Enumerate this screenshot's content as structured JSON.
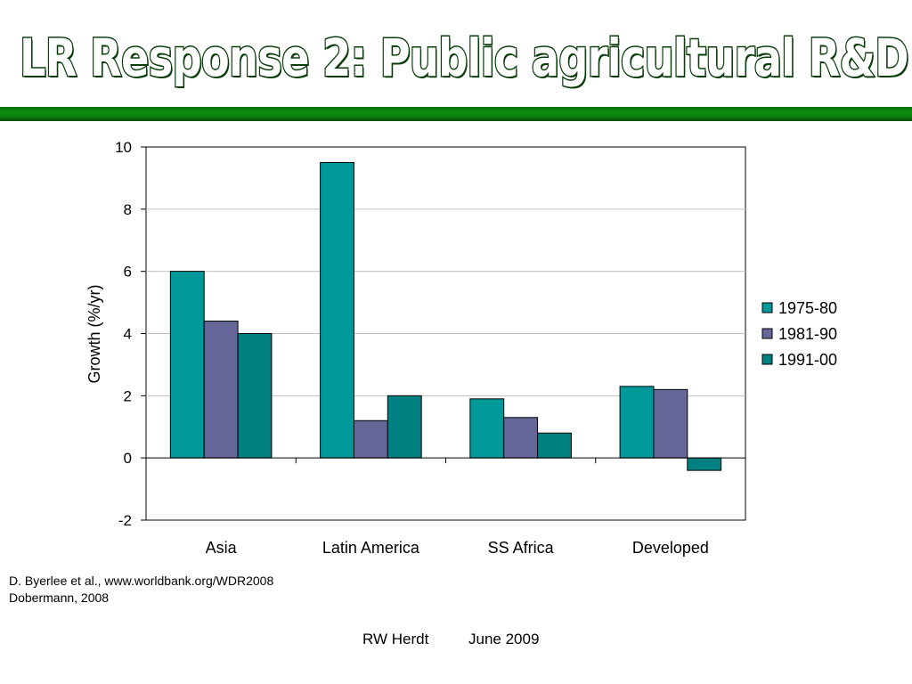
{
  "slide": {
    "title": "LR Response 2: Public agricultural R&D",
    "sources": [
      "D. Byerlee et al., www.worldbank.org/WDR2008",
      "Dobermann, 2008"
    ],
    "footer_author": "RW Herdt",
    "footer_date": "June 2009"
  },
  "chart_data": {
    "type": "bar",
    "title": "",
    "xlabel": "",
    "ylabel": "Growth (%/yr)",
    "categories": [
      "Asia",
      "Latin America",
      "SS Africa",
      "Developed"
    ],
    "series": [
      {
        "name": "1975-80",
        "values": [
          6.0,
          9.5,
          1.9,
          2.3
        ],
        "color": "#009999"
      },
      {
        "name": "1981-90",
        "values": [
          4.4,
          1.2,
          1.3,
          2.2
        ],
        "color": "#666699"
      },
      {
        "name": "1991-00",
        "values": [
          4.0,
          2.0,
          0.8,
          -0.4
        ],
        "color": "#008080"
      }
    ],
    "ylim": [
      -2,
      10
    ],
    "yticks": [
      -2,
      0,
      2,
      4,
      6,
      8,
      10
    ],
    "grid": true,
    "legend_position": "right"
  }
}
